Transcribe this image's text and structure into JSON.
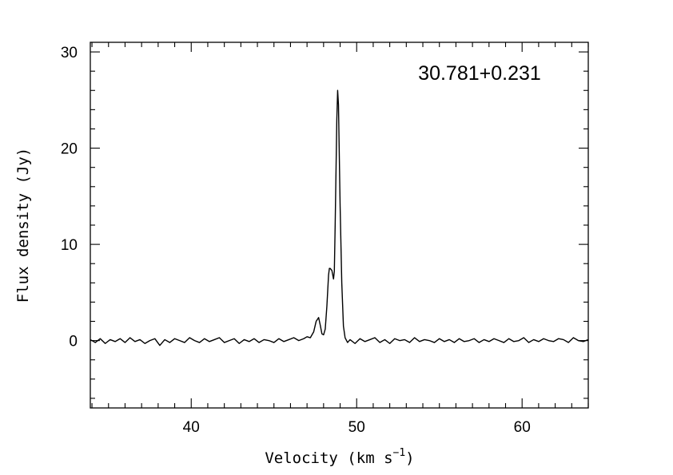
{
  "chart_data": {
    "type": "line",
    "title": "",
    "annotation": "30.781+0.231",
    "xlabel_main": "Velocity (km s",
    "xlabel_exp": "−1",
    "xlabel_close": ")",
    "ylabel": "Flux density (Jy)",
    "xlim": [
      33.9,
      64.0
    ],
    "ylim": [
      -7,
      31
    ],
    "xticks_major": [
      40,
      50,
      60
    ],
    "xtick_labels": [
      "40",
      "50",
      "60"
    ],
    "yticks_major": [
      0,
      10,
      20,
      30
    ],
    "ytick_labels": [
      "0",
      "10",
      "20",
      "30"
    ],
    "grid": false,
    "legend": "none",
    "line_color": "#000000",
    "series": [
      {
        "x": [
          33.9,
          34.2,
          34.5,
          34.8,
          35.1,
          35.4,
          35.7,
          36.0,
          36.3,
          36.6,
          36.9,
          37.2,
          37.5,
          37.8,
          38.1,
          38.4,
          38.7,
          39.0,
          39.3,
          39.6,
          39.9,
          40.2,
          40.5,
          40.8,
          41.1,
          41.4,
          41.7,
          42.0,
          42.3,
          42.6,
          42.9,
          43.2,
          43.5,
          43.8,
          44.1,
          44.4,
          44.7,
          45.0,
          45.3,
          45.6,
          45.9,
          46.2,
          46.5,
          46.8,
          47.0,
          47.2,
          47.4,
          47.55,
          47.7,
          47.8,
          47.9,
          48.0,
          48.1,
          48.2,
          48.3,
          48.35,
          48.4,
          48.5,
          48.6,
          48.65,
          48.7,
          48.8,
          48.85,
          48.9,
          49.0,
          49.1,
          49.2,
          49.3,
          49.45,
          49.6,
          49.9,
          50.2,
          50.5,
          50.8,
          51.1,
          51.4,
          51.7,
          52.0,
          52.3,
          52.6,
          52.9,
          53.2,
          53.5,
          53.8,
          54.1,
          54.4,
          54.7,
          55.0,
          55.3,
          55.6,
          55.9,
          56.2,
          56.5,
          56.8,
          57.1,
          57.4,
          57.7,
          58.0,
          58.3,
          58.6,
          58.9,
          59.2,
          59.5,
          59.8,
          60.1,
          60.4,
          60.7,
          61.0,
          61.3,
          61.6,
          61.9,
          62.2,
          62.5,
          62.8,
          63.1,
          63.4,
          63.7,
          64.0
        ],
        "y": [
          0.1,
          -0.2,
          0.2,
          -0.3,
          0.1,
          -0.1,
          0.2,
          -0.2,
          0.3,
          -0.1,
          0.1,
          -0.3,
          0.0,
          0.2,
          -0.5,
          0.1,
          -0.2,
          0.2,
          0.0,
          -0.2,
          0.3,
          0.0,
          -0.2,
          0.2,
          -0.1,
          0.1,
          0.3,
          -0.2,
          0.0,
          0.2,
          -0.3,
          0.1,
          -0.1,
          0.2,
          -0.2,
          0.1,
          0.0,
          -0.2,
          0.2,
          -0.1,
          0.1,
          0.3,
          0.0,
          0.2,
          0.4,
          0.3,
          0.9,
          2.0,
          2.4,
          1.6,
          0.7,
          0.6,
          1.2,
          3.6,
          6.8,
          7.5,
          7.5,
          7.3,
          6.4,
          7.2,
          12.0,
          23.0,
          26.0,
          24.5,
          14.0,
          6.0,
          1.5,
          0.3,
          -0.2,
          0.1,
          -0.3,
          0.2,
          -0.1,
          0.1,
          0.3,
          -0.2,
          0.1,
          -0.3,
          0.2,
          0.0,
          0.1,
          -0.2,
          0.3,
          -0.1,
          0.1,
          0.0,
          -0.2,
          0.2,
          -0.1,
          0.1,
          -0.2,
          0.2,
          -0.1,
          0.0,
          0.2,
          -0.2,
          0.1,
          -0.1,
          0.2,
          0.0,
          -0.2,
          0.2,
          -0.1,
          0.0,
          0.3,
          -0.2,
          0.1,
          -0.1,
          0.2,
          0.0,
          -0.1,
          0.2,
          0.1,
          -0.2,
          0.3,
          0.0,
          -0.1,
          0.1
        ]
      }
    ]
  }
}
